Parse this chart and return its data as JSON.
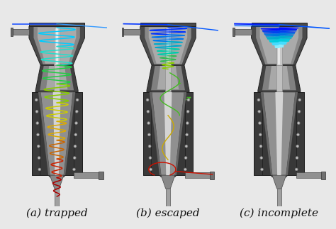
{
  "fig_bg": "#e8e8e8",
  "panel_labels": [
    "(a) trapped",
    "(b) escaped",
    "(c) incomplete"
  ],
  "label_fontsize": 11,
  "label_color": "#111111",
  "body_outer_dark": "#3a3a3a",
  "body_outer_mid": "#555555",
  "body_cone_inner": "#909090",
  "body_cyl_inner": "#a0a0a0",
  "body_shine": "#d0d0d0",
  "body_taper_dark": "#444444",
  "dot_fc": "#c0c0c0",
  "dot_ec": "#777777"
}
